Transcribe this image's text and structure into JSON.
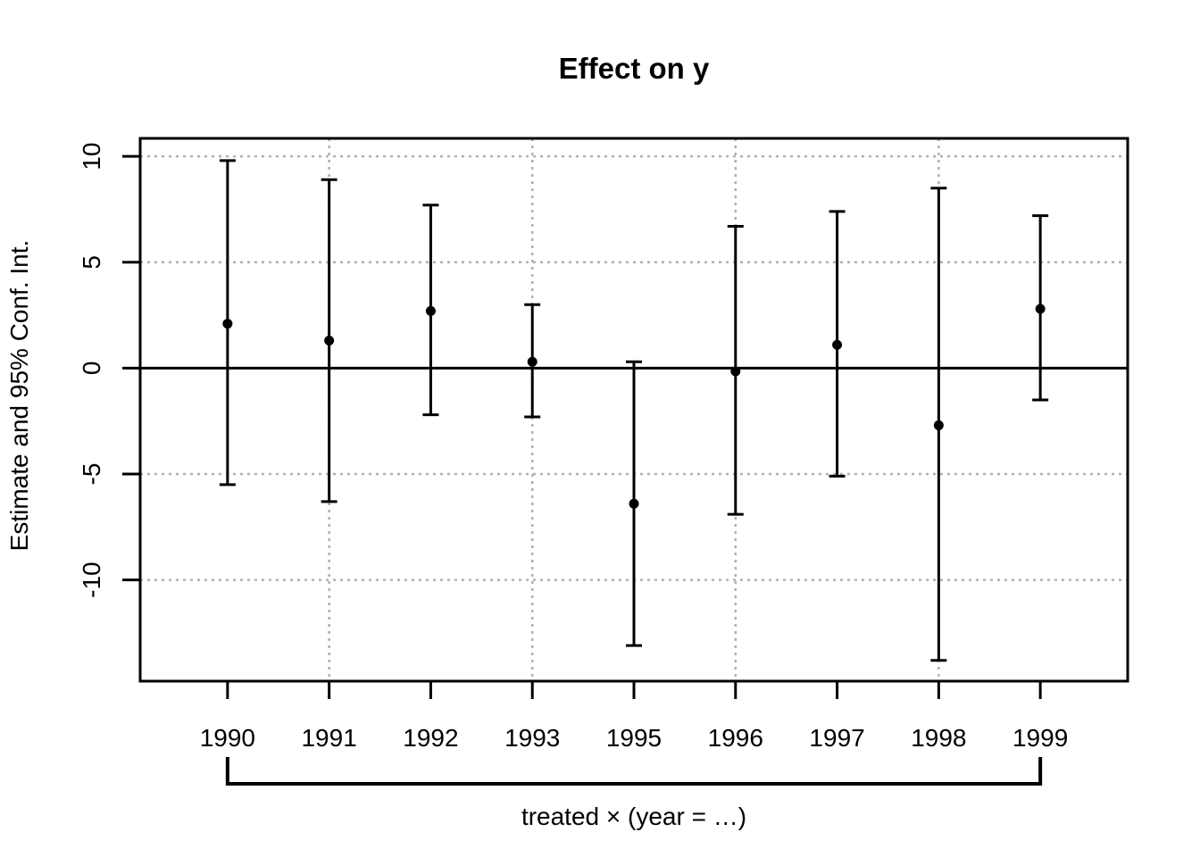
{
  "chart_data": {
    "type": "errorbar",
    "title": "Effect on y",
    "ylabel": "Estimate and 95% Conf. Int.",
    "xlabel_annotation": "treated × (year = …)",
    "categories": [
      "1990",
      "1991",
      "1992",
      "1993",
      "1995",
      "1996",
      "1997",
      "1998",
      "1999"
    ],
    "series": [
      {
        "name": "estimate",
        "values": [
          2.1,
          1.3,
          2.7,
          0.3,
          -6.4,
          -0.15,
          1.1,
          -2.7,
          2.8
        ]
      },
      {
        "name": "ci_low",
        "values": [
          -5.5,
          -6.3,
          -2.2,
          -2.3,
          -13.1,
          -6.9,
          -5.1,
          -13.8,
          -1.5
        ]
      },
      {
        "name": "ci_high",
        "values": [
          9.8,
          8.9,
          7.7,
          3.0,
          0.3,
          6.7,
          7.4,
          8.5,
          7.2
        ]
      }
    ],
    "yticks": [
      -10,
      -5,
      0,
      5,
      10
    ],
    "ytick_labels": [
      "-10",
      "-5",
      "0",
      "5",
      "10"
    ],
    "h_gridlines": [
      -10,
      -5,
      5,
      10
    ],
    "v_gridline_indices": [
      2,
      4,
      6,
      8
    ],
    "zero_line": 0,
    "ylim": [
      -14.78,
      10.85
    ],
    "xlim": [
      0.14,
      9.86
    ],
    "grid_on": true,
    "legend": "none",
    "colors": {
      "foreground": "#000000",
      "gridline": "#b0b0b0",
      "background": "#ffffff"
    },
    "bracket": {
      "from_category": "1990",
      "to_category": "1999"
    }
  }
}
